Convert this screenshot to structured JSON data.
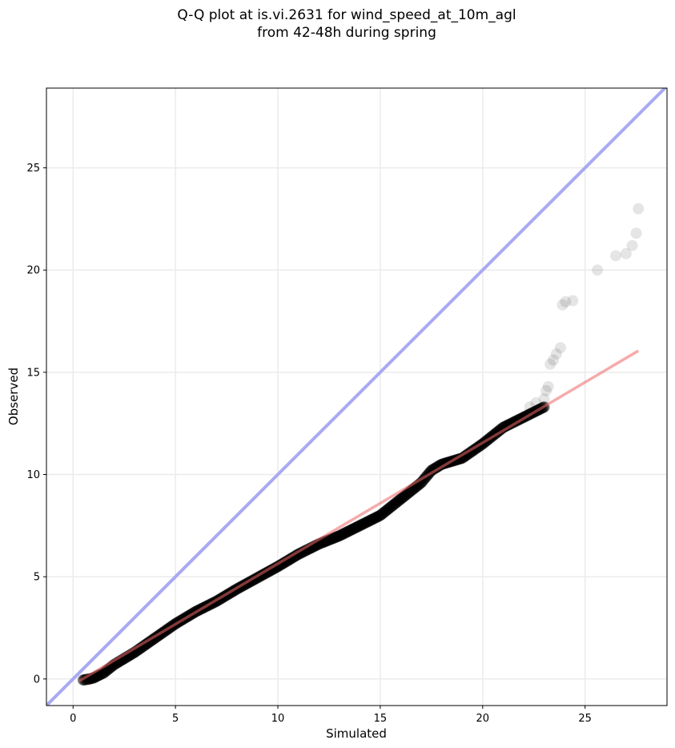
{
  "chart_data": {
    "type": "scatter",
    "title_lines": [
      "Q-Q plot at is.vi.2631 for wind_speed_at_10m_agl",
      "from 42-48h during spring"
    ],
    "xlabel": "Simulated",
    "ylabel": "Observed",
    "xlim": [
      -1.3,
      29.0
    ],
    "ylim": [
      -1.3,
      28.9
    ],
    "xticks": [
      0,
      5,
      10,
      15,
      20,
      25
    ],
    "yticks": [
      0,
      5,
      10,
      15,
      20,
      25
    ],
    "grid": true,
    "colors": {
      "points": "#000000",
      "identity_line": "#a9aaf2",
      "fit_line": "#f2a7a7",
      "grid": "#ebebeb"
    },
    "reference_lines": [
      {
        "kind": "identity",
        "x": [
          -1.3,
          29.0
        ],
        "y": [
          -1.3,
          29.0
        ]
      },
      {
        "kind": "fit",
        "x": [
          0.3,
          27.6
        ],
        "y": [
          -0.1,
          16.05
        ]
      }
    ],
    "quantile_curve": [
      [
        0.5,
        -0.05
      ],
      [
        0.8,
        0.0
      ],
      [
        1.0,
        0.05
      ],
      [
        1.5,
        0.3
      ],
      [
        2.0,
        0.7
      ],
      [
        3.0,
        1.3
      ],
      [
        4.0,
        2.0
      ],
      [
        5.0,
        2.7
      ],
      [
        6.0,
        3.3
      ],
      [
        7.0,
        3.8
      ],
      [
        8.0,
        4.4
      ],
      [
        9.0,
        4.95
      ],
      [
        10.0,
        5.5
      ],
      [
        11.0,
        6.1
      ],
      [
        12.0,
        6.6
      ],
      [
        13.0,
        7.0
      ],
      [
        14.0,
        7.5
      ],
      [
        15.0,
        8.0
      ],
      [
        15.5,
        8.4
      ],
      [
        16.0,
        8.8
      ],
      [
        16.5,
        9.2
      ],
      [
        17.0,
        9.6
      ],
      [
        17.5,
        10.2
      ],
      [
        18.0,
        10.5
      ],
      [
        19.0,
        10.8
      ],
      [
        20.0,
        11.5
      ],
      [
        21.0,
        12.3
      ],
      [
        22.0,
        12.8
      ],
      [
        23.0,
        13.3
      ]
    ],
    "tail_points": [
      [
        22.3,
        13.3
      ],
      [
        22.6,
        13.5
      ],
      [
        23.0,
        13.7
      ],
      [
        23.1,
        14.1
      ],
      [
        23.2,
        14.3
      ],
      [
        23.3,
        15.4
      ],
      [
        23.45,
        15.6
      ],
      [
        23.6,
        15.9
      ],
      [
        23.8,
        16.2
      ],
      [
        23.9,
        18.3
      ],
      [
        24.05,
        18.45
      ],
      [
        24.4,
        18.5
      ],
      [
        25.6,
        20.0
      ],
      [
        26.5,
        20.7
      ],
      [
        27.0,
        20.8
      ],
      [
        27.3,
        21.2
      ],
      [
        27.5,
        21.8
      ],
      [
        27.6,
        23.0
      ]
    ]
  }
}
